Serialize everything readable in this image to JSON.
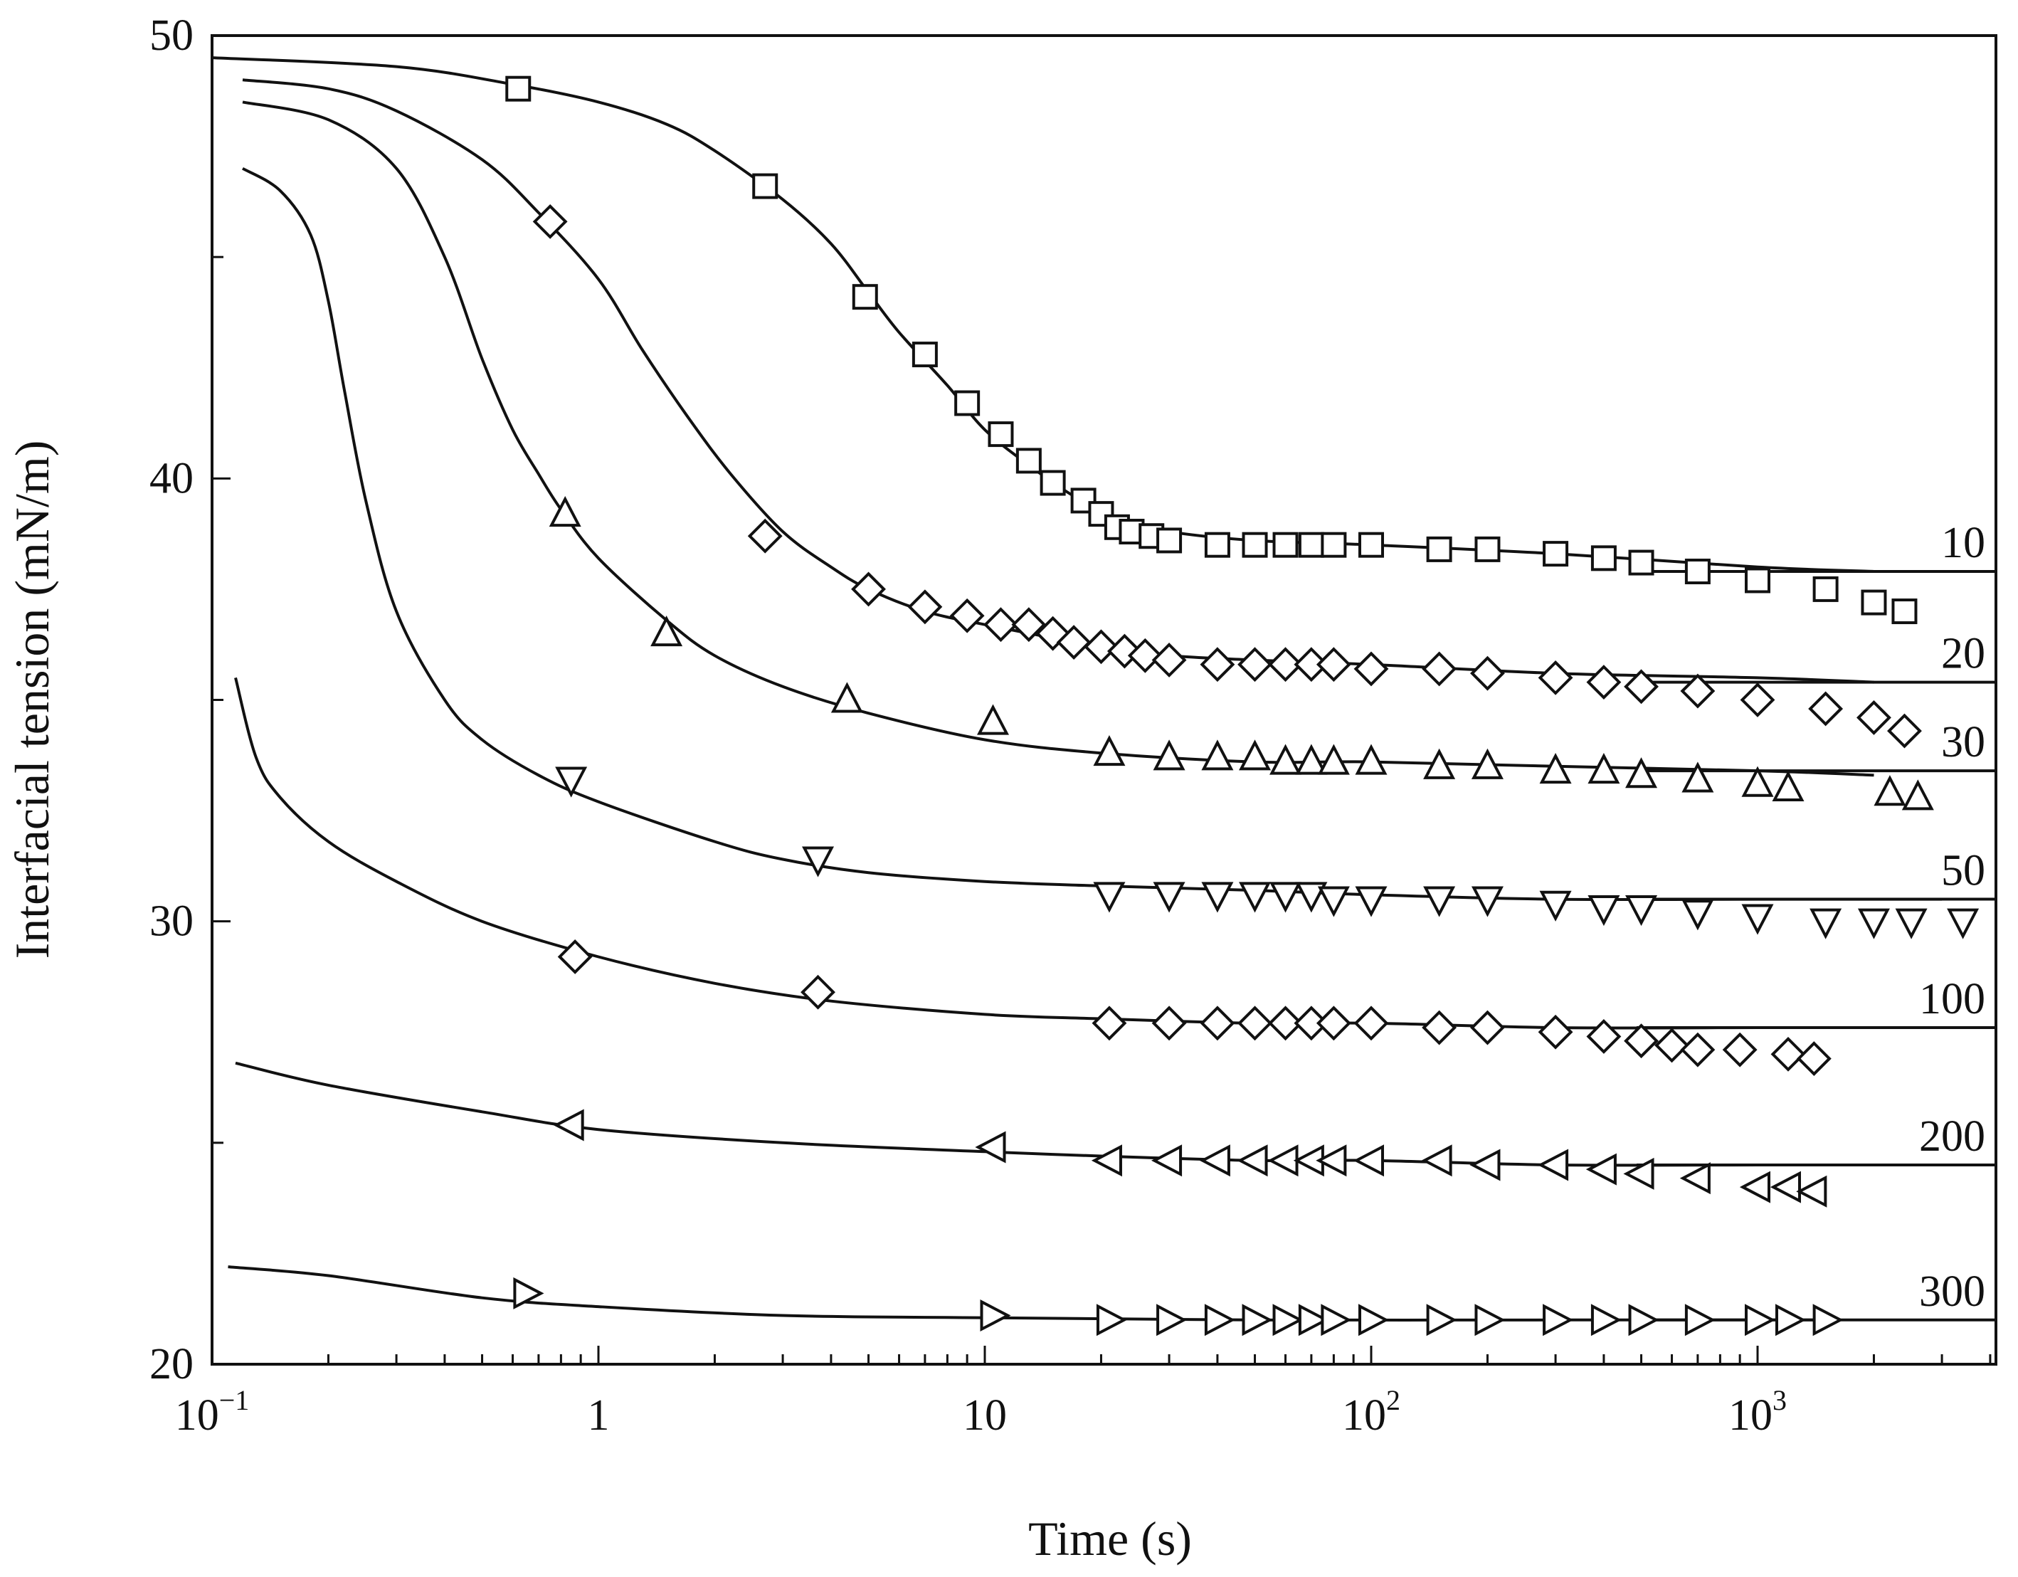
{
  "chart_data": {
    "type": "scatter",
    "title": "",
    "xlabel": "Time (s)",
    "ylabel": "Interfacial tension (mN/m)",
    "xscale": "log",
    "xlim": [
      0.1,
      5000
    ],
    "ylim": [
      20,
      50
    ],
    "grid": false,
    "legend": "none",
    "x_ticks": [
      {
        "value": 0.1,
        "base": "10",
        "exp": "−1"
      },
      {
        "value": 1,
        "base": "1",
        "exp": ""
      },
      {
        "value": 10,
        "base": "10",
        "exp": ""
      },
      {
        "value": 100,
        "base": "10",
        "exp": "2"
      },
      {
        "value": 1000,
        "base": "10",
        "exp": "3"
      }
    ],
    "y_ticks": [
      {
        "value": 20,
        "label": "20"
      },
      {
        "value": 30,
        "label": "30"
      },
      {
        "value": 40,
        "label": "40"
      },
      {
        "value": 50,
        "label": "50"
      }
    ],
    "series": [
      {
        "name": "10",
        "marker": "square",
        "equilibrium": 37.9,
        "points": [
          [
            0.62,
            48.8
          ],
          [
            2.7,
            46.6
          ],
          [
            4.9,
            44.1
          ],
          [
            7.0,
            42.8
          ],
          [
            9.0,
            41.7
          ],
          [
            11,
            41.0
          ],
          [
            13,
            40.4
          ],
          [
            15,
            39.9
          ],
          [
            18,
            39.5
          ],
          [
            20,
            39.2
          ],
          [
            22,
            38.9
          ],
          [
            24,
            38.8
          ],
          [
            27,
            38.7
          ],
          [
            30,
            38.6
          ],
          [
            40,
            38.5
          ],
          [
            50,
            38.5
          ],
          [
            60,
            38.5
          ],
          [
            70,
            38.5
          ],
          [
            80,
            38.5
          ],
          [
            100,
            38.5
          ],
          [
            150,
            38.4
          ],
          [
            200,
            38.4
          ],
          [
            300,
            38.3
          ],
          [
            400,
            38.2
          ],
          [
            500,
            38.1
          ],
          [
            700,
            37.9
          ],
          [
            1000,
            37.7
          ],
          [
            1500,
            37.5
          ],
          [
            2000,
            37.2
          ],
          [
            2400,
            37.0
          ]
        ],
        "fit": [
          [
            0.1,
            49.5
          ],
          [
            0.3,
            49.3
          ],
          [
            0.6,
            48.9
          ],
          [
            1,
            48.5
          ],
          [
            1.5,
            48.0
          ],
          [
            2,
            47.4
          ],
          [
            3,
            46.3
          ],
          [
            4,
            45.3
          ],
          [
            5,
            44.2
          ],
          [
            6,
            43.3
          ],
          [
            8,
            42.1
          ],
          [
            10,
            41.1
          ],
          [
            13,
            40.3
          ],
          [
            17,
            39.6
          ],
          [
            22,
            39.1
          ],
          [
            30,
            38.8
          ],
          [
            50,
            38.6
          ],
          [
            100,
            38.5
          ],
          [
            300,
            38.3
          ],
          [
            1000,
            38.0
          ],
          [
            2000,
            37.9
          ]
        ]
      },
      {
        "name": "20",
        "marker": "diamond",
        "equilibrium": 35.4,
        "points": [
          [
            0.75,
            45.8
          ],
          [
            2.7,
            38.7
          ],
          [
            5.0,
            37.5
          ],
          [
            7.0,
            37.1
          ],
          [
            9.0,
            36.9
          ],
          [
            11,
            36.7
          ],
          [
            13,
            36.7
          ],
          [
            15,
            36.5
          ],
          [
            17,
            36.3
          ],
          [
            20,
            36.2
          ],
          [
            23,
            36.1
          ],
          [
            26,
            36.0
          ],
          [
            30,
            35.9
          ],
          [
            40,
            35.8
          ],
          [
            50,
            35.8
          ],
          [
            60,
            35.8
          ],
          [
            70,
            35.8
          ],
          [
            80,
            35.8
          ],
          [
            100,
            35.7
          ],
          [
            150,
            35.7
          ],
          [
            200,
            35.6
          ],
          [
            300,
            35.5
          ],
          [
            400,
            35.4
          ],
          [
            500,
            35.3
          ],
          [
            700,
            35.2
          ],
          [
            1000,
            35.0
          ],
          [
            1500,
            34.8
          ],
          [
            2000,
            34.6
          ],
          [
            2400,
            34.3
          ]
        ],
        "fit": [
          [
            0.12,
            49.0
          ],
          [
            0.2,
            48.8
          ],
          [
            0.3,
            48.3
          ],
          [
            0.5,
            47.2
          ],
          [
            0.7,
            46.0
          ],
          [
            1,
            44.5
          ],
          [
            1.3,
            42.9
          ],
          [
            1.7,
            41.4
          ],
          [
            2.2,
            40.1
          ],
          [
            3,
            38.8
          ],
          [
            4,
            38.0
          ],
          [
            5,
            37.5
          ],
          [
            7,
            37.0
          ],
          [
            10,
            36.7
          ],
          [
            15,
            36.4
          ],
          [
            20,
            36.2
          ],
          [
            30,
            36.0
          ],
          [
            50,
            35.9
          ],
          [
            100,
            35.8
          ],
          [
            300,
            35.6
          ],
          [
            1000,
            35.5
          ],
          [
            2000,
            35.4
          ]
        ]
      },
      {
        "name": "30",
        "marker": "triangle-up",
        "equilibrium": 33.4,
        "points": [
          [
            0.82,
            39.2
          ],
          [
            1.5,
            36.5
          ],
          [
            4.4,
            35.0
          ],
          [
            10.5,
            34.5
          ],
          [
            21,
            33.8
          ],
          [
            30,
            33.7
          ],
          [
            40,
            33.7
          ],
          [
            50,
            33.7
          ],
          [
            60,
            33.6
          ],
          [
            70,
            33.6
          ],
          [
            80,
            33.6
          ],
          [
            100,
            33.6
          ],
          [
            150,
            33.5
          ],
          [
            200,
            33.5
          ],
          [
            300,
            33.4
          ],
          [
            400,
            33.4
          ],
          [
            500,
            33.3
          ],
          [
            700,
            33.2
          ],
          [
            1000,
            33.1
          ],
          [
            1200,
            33.0
          ],
          [
            2200,
            32.9
          ],
          [
            2600,
            32.8
          ]
        ],
        "fit": [
          [
            0.12,
            48.5
          ],
          [
            0.2,
            48.1
          ],
          [
            0.3,
            47.0
          ],
          [
            0.4,
            45.0
          ],
          [
            0.5,
            42.7
          ],
          [
            0.6,
            41.1
          ],
          [
            0.7,
            40.1
          ],
          [
            0.8,
            39.3
          ],
          [
            1,
            38.2
          ],
          [
            1.5,
            36.8
          ],
          [
            2,
            36.0
          ],
          [
            3,
            35.3
          ],
          [
            5,
            34.7
          ],
          [
            10,
            34.1
          ],
          [
            20,
            33.8
          ],
          [
            50,
            33.6
          ],
          [
            100,
            33.6
          ],
          [
            300,
            33.5
          ],
          [
            1000,
            33.4
          ],
          [
            2000,
            33.3
          ]
        ]
      },
      {
        "name": "50",
        "marker": "triangle-down",
        "equilibrium": 30.5,
        "points": [
          [
            0.85,
            33.2
          ],
          [
            3.7,
            31.4
          ],
          [
            21,
            30.6
          ],
          [
            30,
            30.6
          ],
          [
            40,
            30.6
          ],
          [
            50,
            30.6
          ],
          [
            60,
            30.6
          ],
          [
            70,
            30.6
          ],
          [
            80,
            30.5
          ],
          [
            100,
            30.5
          ],
          [
            150,
            30.5
          ],
          [
            200,
            30.5
          ],
          [
            300,
            30.4
          ],
          [
            400,
            30.3
          ],
          [
            500,
            30.3
          ],
          [
            700,
            30.2
          ],
          [
            1000,
            30.1
          ],
          [
            1500,
            30.0
          ],
          [
            2000,
            30.0
          ],
          [
            2500,
            30.0
          ],
          [
            3400,
            30.0
          ]
        ],
        "fit": [
          [
            0.12,
            47.0
          ],
          [
            0.15,
            46.5
          ],
          [
            0.18,
            45.5
          ],
          [
            0.2,
            44.0
          ],
          [
            0.22,
            42.0
          ],
          [
            0.25,
            39.5
          ],
          [
            0.3,
            37.0
          ],
          [
            0.4,
            35.0
          ],
          [
            0.5,
            34.1
          ],
          [
            0.7,
            33.3
          ],
          [
            1,
            32.7
          ],
          [
            2,
            31.8
          ],
          [
            3,
            31.4
          ],
          [
            5,
            31.1
          ],
          [
            10,
            30.9
          ],
          [
            20,
            30.8
          ],
          [
            50,
            30.7
          ],
          [
            100,
            30.6
          ],
          [
            300,
            30.5
          ],
          [
            1000,
            30.5
          ],
          [
            3000,
            30.5
          ]
        ]
      },
      {
        "name": "100",
        "marker": "diamond",
        "equilibrium": 27.6,
        "points": [
          [
            0.87,
            29.2
          ],
          [
            3.7,
            28.4
          ],
          [
            21,
            27.7
          ],
          [
            30,
            27.7
          ],
          [
            40,
            27.7
          ],
          [
            50,
            27.7
          ],
          [
            60,
            27.7
          ],
          [
            70,
            27.7
          ],
          [
            80,
            27.7
          ],
          [
            100,
            27.7
          ],
          [
            150,
            27.6
          ],
          [
            200,
            27.6
          ],
          [
            300,
            27.5
          ],
          [
            400,
            27.4
          ],
          [
            500,
            27.3
          ],
          [
            600,
            27.2
          ],
          [
            700,
            27.1
          ],
          [
            900,
            27.1
          ],
          [
            1200,
            27.0
          ],
          [
            1400,
            26.9
          ]
        ],
        "fit": [
          [
            0.115,
            35.5
          ],
          [
            0.13,
            33.7
          ],
          [
            0.15,
            32.8
          ],
          [
            0.2,
            31.8
          ],
          [
            0.3,
            30.9
          ],
          [
            0.5,
            30.0
          ],
          [
            1,
            29.2
          ],
          [
            2,
            28.6
          ],
          [
            4,
            28.2
          ],
          [
            10,
            27.9
          ],
          [
            20,
            27.8
          ],
          [
            50,
            27.7
          ],
          [
            100,
            27.7
          ],
          [
            300,
            27.6
          ],
          [
            1000,
            27.6
          ],
          [
            1500,
            27.6
          ]
        ]
      },
      {
        "name": "200",
        "marker": "triangle-left",
        "equilibrium": 24.5,
        "points": [
          [
            0.85,
            25.4
          ],
          [
            10.5,
            24.9
          ],
          [
            21,
            24.6
          ],
          [
            30,
            24.6
          ],
          [
            40,
            24.6
          ],
          [
            50,
            24.6
          ],
          [
            60,
            24.6
          ],
          [
            70,
            24.6
          ],
          [
            80,
            24.6
          ],
          [
            100,
            24.6
          ],
          [
            150,
            24.6
          ],
          [
            200,
            24.5
          ],
          [
            300,
            24.5
          ],
          [
            400,
            24.4
          ],
          [
            500,
            24.3
          ],
          [
            700,
            24.2
          ],
          [
            1000,
            24.0
          ],
          [
            1200,
            24.0
          ],
          [
            1400,
            23.9
          ]
        ],
        "fit": [
          [
            0.115,
            26.8
          ],
          [
            0.2,
            26.3
          ],
          [
            0.5,
            25.7
          ],
          [
            1,
            25.3
          ],
          [
            3,
            25.0
          ],
          [
            10,
            24.8
          ],
          [
            20,
            24.7
          ],
          [
            50,
            24.6
          ],
          [
            100,
            24.6
          ],
          [
            300,
            24.5
          ],
          [
            1000,
            24.5
          ],
          [
            1500,
            24.5
          ]
        ]
      },
      {
        "name": "300",
        "marker": "triangle-right",
        "equilibrium": 21.0,
        "points": [
          [
            0.65,
            21.6
          ],
          [
            10.5,
            21.1
          ],
          [
            21,
            21.0
          ],
          [
            30,
            21.0
          ],
          [
            40,
            21.0
          ],
          [
            50,
            21.0
          ],
          [
            60,
            21.0
          ],
          [
            70,
            21.0
          ],
          [
            80,
            21.0
          ],
          [
            100,
            21.0
          ],
          [
            150,
            21.0
          ],
          [
            200,
            21.0
          ],
          [
            300,
            21.0
          ],
          [
            400,
            21.0
          ],
          [
            500,
            21.0
          ],
          [
            700,
            21.0
          ],
          [
            1000,
            21.0
          ],
          [
            1200,
            21.0
          ],
          [
            1500,
            21.0
          ]
        ],
        "fit": [
          [
            0.11,
            22.2
          ],
          [
            0.2,
            22.0
          ],
          [
            0.5,
            21.5
          ],
          [
            1,
            21.3
          ],
          [
            3,
            21.1
          ],
          [
            10,
            21.05
          ],
          [
            50,
            21.0
          ],
          [
            300,
            21.0
          ],
          [
            1500,
            21.0
          ]
        ]
      }
    ]
  }
}
